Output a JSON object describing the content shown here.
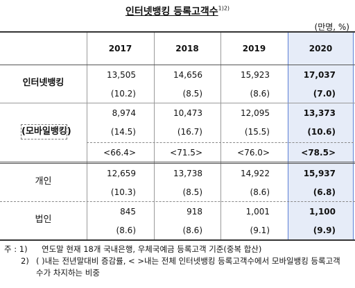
{
  "title": "인터넷뱅킹 등록고객수",
  "title_note": "1)2)",
  "unit": "(만명, %)",
  "table": {
    "header": [
      "2017",
      "2018",
      "2019",
      "2020"
    ],
    "rows": [
      {
        "label": "인터넷뱅킹",
        "lines": [
          [
            "13,505",
            "14,656",
            "15,923",
            "17,037"
          ],
          [
            "(10.2)",
            "(8.5)",
            "(8.6)",
            "(7.0)"
          ]
        ]
      },
      {
        "label": "(모바일뱅킹)",
        "lines": [
          [
            "8,974",
            "10,473",
            "12,095",
            "13,373"
          ],
          [
            "(14.5)",
            "(16.7)",
            "(15.5)",
            "(10.6)"
          ],
          [
            "<66.4>",
            "<71.5>",
            "<76.0>",
            "<78.5>"
          ]
        ]
      },
      {
        "label": "개인",
        "lines": [
          [
            "12,659",
            "13,738",
            "14,922",
            "15,937"
          ],
          [
            "(10.3)",
            "(8.5)",
            "(8.6)",
            "(6.8)"
          ]
        ]
      },
      {
        "label": "법인",
        "lines": [
          [
            "845",
            "918",
            "1,001",
            "1,100"
          ],
          [
            "(8.6)",
            "(8.6)",
            "(9.1)",
            "(9.9)"
          ]
        ]
      }
    ]
  },
  "notes": [
    {
      "marker": "주 : 1)",
      "text": "연도말 현재 18개 국내은행, 우체국예금 등록고객 기준(중복 합산)"
    },
    {
      "marker": "2)",
      "text": "( )내는 전년말대비 증감률, < >내는 전체 인터넷뱅킹 등록고객수에서 모바일뱅킹 등록고객수가 차지하는 비중"
    }
  ]
}
